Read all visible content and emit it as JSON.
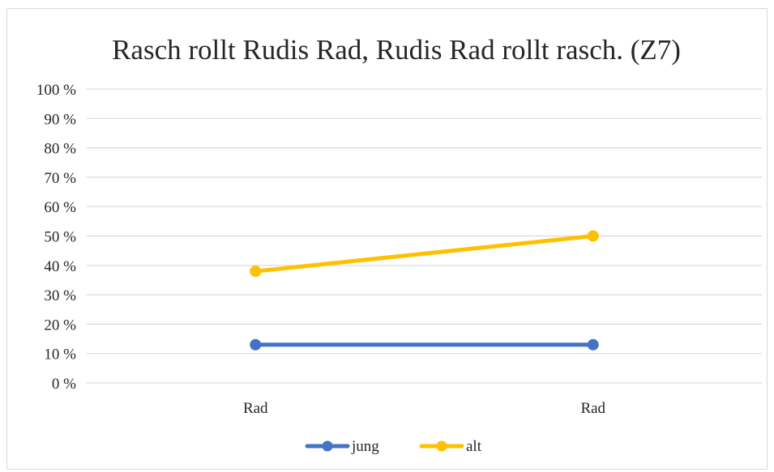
{
  "chart_data": {
    "type": "line",
    "title": "Rasch rollt Rudis Rad, Rudis Rad rollt rasch. (Z7)",
    "categories": [
      "Rad",
      "Rad"
    ],
    "series": [
      {
        "name": "jung",
        "values": [
          13,
          13
        ],
        "color": "#4472C4"
      },
      {
        "name": "alt",
        "values": [
          38,
          50
        ],
        "color": "#FFC000"
      }
    ],
    "ylim": [
      0,
      100
    ],
    "yticks": [
      0,
      10,
      20,
      30,
      40,
      50,
      60,
      70,
      80,
      90,
      100
    ],
    "ytick_labels": [
      "0 %",
      "10 %",
      "20 %",
      "30 %",
      "40 %",
      "50 %",
      "60 %",
      "70 %",
      "80 %",
      "90 %",
      "100 %"
    ],
    "grid": true,
    "gridline_color": "#d9d9d9",
    "legend_position": "bottom"
  }
}
